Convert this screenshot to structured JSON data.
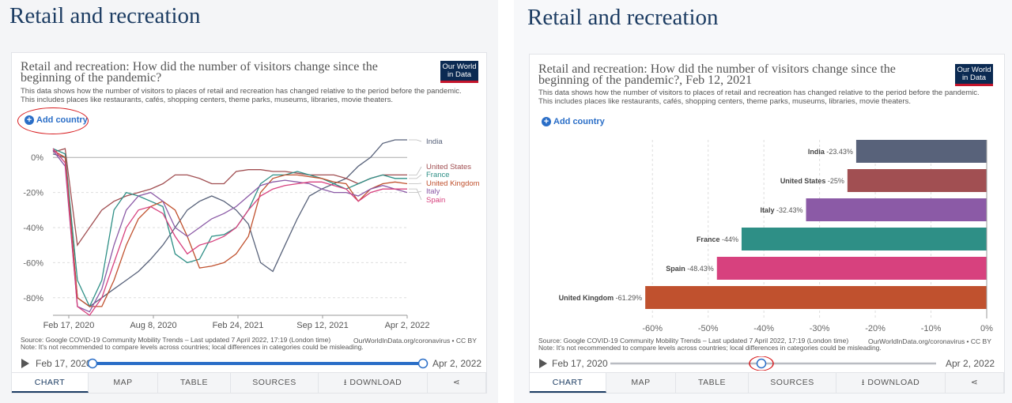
{
  "left": {
    "page_title": "Retail and recreation",
    "chart_title_1": "Retail and recreation: How did the number of visitors change since the",
    "chart_title_2": "beginning of the pandemic?",
    "subtitle_1": "This data shows how the number of visitors to places of retail and recreation has changed relative to the period before the pandemic.",
    "subtitle_2": "This includes places like restaurants, cafés, shopping centers, theme parks, museums, libraries, movie theaters.",
    "logo_1": "Our World",
    "logo_2": "in Data",
    "add_country": "Add country",
    "source_1": "Source: Google COVID-19 Community Mobility Trends – Last updated 7 April 2022, 17:19 (London time)",
    "source_2": "Note: It's not recommended to compare levels across countries; local differences in categories could be misleading.",
    "source_right": "OurWorldInData.org/coronavirus • CC BY",
    "timeline_start": "Feb 17, 2020",
    "timeline_end": "Apr 2, 2022"
  },
  "right": {
    "page_title": "Retail and recreation",
    "chart_title_1": "Retail and recreation: How did the number of visitors change since the",
    "chart_title_2": "beginning of the pandemic?, Feb 12, 2021",
    "subtitle_1": "This data shows how the number of visitors to places of retail and recreation has changed relative to the period before the pandemic.",
    "subtitle_2": "This includes places like restaurants, cafés, shopping centers, theme parks, museums, libraries, movie theaters.",
    "logo_1": "Our World",
    "logo_2": "in Data",
    "add_country": "Add country",
    "source_1": "Source: Google COVID-19 Community Mobility Trends – Last updated 7 April 2022, 17:19 (London time)",
    "source_2": "Note: It's not recommended to compare levels across countries; local differences in categories could be misleading.",
    "source_right": "OurWorldInData.org/coronavirus • CC BY",
    "timeline_start": "Feb 17, 2020",
    "timeline_end": "Apr 2, 2022"
  },
  "tabs": [
    "CHART",
    "MAP",
    "TABLE",
    "SOURCES",
    "DOWNLOAD"
  ],
  "icons": {
    "add": "plus-circle-icon",
    "play": "play-icon",
    "download": "download-icon",
    "share": "share-icon"
  },
  "colors": {
    "India": "#58627a",
    "United States": "#a14f52",
    "France": "#2e8f86",
    "United Kingdom": "#c0512e",
    "Italy": "#8b5aa6",
    "Spain": "#d7417e",
    "brand": "#0b2a52",
    "accent": "#2a6ec7",
    "highlight": "#d7191c"
  },
  "chart_data": [
    {
      "type": "line",
      "x_tick_labels": [
        "Feb 17, 2020",
        "Aug 8, 2020",
        "Feb 24, 2021",
        "Sep 12, 2021",
        "Apr 2, 2022"
      ],
      "y_tick_labels": [
        "0%",
        "-20%",
        "-40%",
        "-60%",
        "-80%"
      ],
      "ylim": [
        -90,
        10
      ],
      "series": [
        {
          "name": "India",
          "values": [
            2,
            0,
            -80,
            -85,
            -80,
            -75,
            -70,
            -65,
            -58,
            -50,
            -40,
            -30,
            -25,
            -22,
            -25,
            -30,
            -38,
            -60,
            -65,
            -50,
            -35,
            -22,
            -18,
            -15,
            -12,
            -5,
            0,
            8,
            10,
            10
          ]
        },
        {
          "name": "United States",
          "values": [
            3,
            5,
            -50,
            -40,
            -30,
            -25,
            -22,
            -20,
            -18,
            -15,
            -10,
            -10,
            -12,
            -15,
            -15,
            -8,
            -7,
            -7,
            -8,
            -8,
            -9,
            -10,
            -10,
            -10,
            -12,
            -15,
            -12,
            -10,
            -10,
            -10
          ]
        },
        {
          "name": "France",
          "values": [
            5,
            2,
            -70,
            -85,
            -70,
            -30,
            -20,
            -22,
            -25,
            -28,
            -55,
            -60,
            -58,
            -45,
            -44,
            -40,
            -30,
            -15,
            -10,
            -10,
            -8,
            -10,
            -12,
            -15,
            -18,
            -15,
            -12,
            -10,
            -12,
            -12
          ]
        },
        {
          "name": "United Kingdom",
          "values": [
            4,
            0,
            -80,
            -85,
            -85,
            -70,
            -50,
            -35,
            -28,
            -25,
            -30,
            -45,
            -63,
            -62,
            -60,
            -55,
            -45,
            -20,
            -12,
            -10,
            -10,
            -11,
            -12,
            -14,
            -15,
            -25,
            -18,
            -15,
            -14,
            -15
          ]
        },
        {
          "name": "Italy",
          "values": [
            4,
            -5,
            -85,
            -88,
            -75,
            -50,
            -30,
            -22,
            -20,
            -25,
            -40,
            -45,
            -40,
            -35,
            -32,
            -28,
            -22,
            -16,
            -14,
            -13,
            -14,
            -15,
            -18,
            -20,
            -20,
            -22,
            -18,
            -16,
            -18,
            -20
          ]
        },
        {
          "name": "Spain",
          "values": [
            5,
            -3,
            -85,
            -90,
            -80,
            -60,
            -40,
            -30,
            -28,
            -32,
            -45,
            -55,
            -50,
            -48,
            -45,
            -40,
            -30,
            -22,
            -18,
            -16,
            -15,
            -14,
            -14,
            -16,
            -18,
            -25,
            -20,
            -18,
            -18,
            -18
          ]
        }
      ]
    },
    {
      "type": "bar",
      "title": "Retail and recreation: How did the number of visitors change since the beginning of the pandemic?, Feb 12, 2021",
      "categories": [
        "India",
        "United States",
        "Italy",
        "France",
        "Spain",
        "United Kingdom"
      ],
      "values": [
        -23.43,
        -25,
        -32.43,
        -44,
        -48.43,
        -61.29
      ],
      "value_labels": [
        "-23.43%",
        "-25%",
        "-32.43%",
        "-44%",
        "-48.43%",
        "-61.29%"
      ],
      "x_tick_labels": [
        "-60%",
        "-50%",
        "-40%",
        "-30%",
        "-20%",
        "-10%",
        "0%"
      ],
      "xlim": [
        -65,
        0
      ]
    }
  ]
}
